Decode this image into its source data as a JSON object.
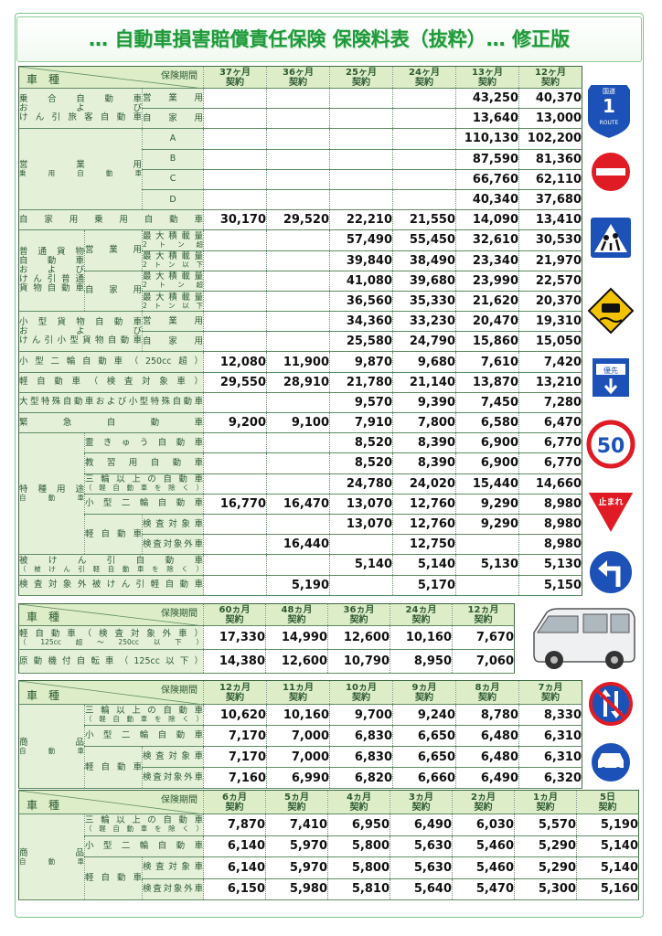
{
  "title": "… 自動車損害賠償責任保険 保険料表（抜粋）… 修正版",
  "signs": {
    "route_top": "国道",
    "route_number": "1",
    "route_bottom": "ROUTE",
    "priority": "優先",
    "speed": "50",
    "stop": "止まれ"
  },
  "table1": {
    "corner_top": "保険期間",
    "corner_bottom": "車　種",
    "columns": [
      [
        "37ヶ月",
        "契約"
      ],
      [
        "36ヶ月",
        "契約"
      ],
      [
        "25ヶ月",
        "契約"
      ],
      [
        "24ヶ月",
        "契約"
      ],
      [
        "13ヶ月",
        "契約"
      ],
      [
        "12ヶ月",
        "契約"
      ]
    ],
    "rows": [
      {
        "labels": [
          [
            "乗合自動車",
            "および",
            "けん引旅客自動車"
          ],
          [
            "営業用"
          ]
        ],
        "values": [
          null,
          null,
          null,
          null,
          "43,250",
          "40,370"
        ]
      },
      {
        "labels": [
          [
            "自家用"
          ]
        ],
        "values": [
          null,
          null,
          null,
          null,
          "13,640",
          "13,000"
        ]
      },
      {
        "labels": [
          [
            "営業用",
            "乗用自動車"
          ],
          [
            "A"
          ]
        ],
        "values": [
          null,
          null,
          null,
          null,
          "110,130",
          "102,200"
        ]
      },
      {
        "labels": [
          [
            "B"
          ]
        ],
        "values": [
          null,
          null,
          null,
          null,
          "87,590",
          "81,360"
        ]
      },
      {
        "labels": [
          [
            "C"
          ]
        ],
        "values": [
          null,
          null,
          null,
          null,
          "66,760",
          "62,110"
        ]
      },
      {
        "labels": [
          [
            "D"
          ]
        ],
        "values": [
          null,
          null,
          null,
          null,
          "40,340",
          "37,680"
        ]
      },
      {
        "labels": [
          [
            "自家用乗用自動車"
          ]
        ],
        "values": [
          "30,170",
          "29,520",
          "22,210",
          "21,550",
          "14,090",
          "13,410"
        ]
      },
      {
        "labels": [
          [
            "普通貨物",
            "自動車",
            "および",
            "けん引普通",
            "貨物自動車"
          ],
          [
            "営業用"
          ],
          [
            "最大積載量",
            "2トン超"
          ]
        ],
        "values": [
          null,
          null,
          "57,490",
          "55,450",
          "32,610",
          "30,530"
        ]
      },
      {
        "labels": [
          [
            "最大積載量",
            "2トン以下"
          ]
        ],
        "values": [
          null,
          null,
          "39,840",
          "38,490",
          "23,340",
          "21,970"
        ]
      },
      {
        "labels": [
          [
            "自家用"
          ],
          [
            "最大積載量",
            "2トン超"
          ]
        ],
        "values": [
          null,
          null,
          "41,080",
          "39,680",
          "23,990",
          "22,570"
        ]
      },
      {
        "labels": [
          [
            "最大積載量",
            "2トン以下"
          ]
        ],
        "values": [
          null,
          null,
          "36,560",
          "35,330",
          "21,620",
          "20,370"
        ]
      },
      {
        "labels": [
          [
            "小型貨物自動車",
            "および",
            "けん引小型貨物自動車"
          ],
          [
            "営業用"
          ]
        ],
        "values": [
          null,
          null,
          "34,360",
          "33,230",
          "20,470",
          "19,310"
        ]
      },
      {
        "labels": [
          [
            "自家用"
          ]
        ],
        "values": [
          null,
          null,
          "25,580",
          "24,790",
          "15,860",
          "15,050"
        ]
      },
      {
        "labels": [
          [
            "小型二輪自動車（250cc超）"
          ]
        ],
        "values": [
          "12,080",
          "11,900",
          "9,870",
          "9,680",
          "7,610",
          "7,420"
        ]
      },
      {
        "labels": [
          [
            "軽自動車（検査対象車）"
          ]
        ],
        "values": [
          "29,550",
          "28,910",
          "21,780",
          "21,140",
          "13,870",
          "13,210"
        ]
      },
      {
        "labels": [
          [
            "大型特殊自動車および小型特殊自動車"
          ]
        ],
        "values": [
          null,
          null,
          "9,570",
          "9,390",
          "7,450",
          "7,280"
        ]
      },
      {
        "labels": [
          [
            "緊急自動車"
          ]
        ],
        "values": [
          "9,200",
          "9,100",
          "7,910",
          "7,800",
          "6,580",
          "6,470"
        ]
      },
      {
        "labels": [
          [
            "特種用途",
            "自動車"
          ],
          [
            "霊きゅう自動車"
          ]
        ],
        "values": [
          null,
          null,
          "8,520",
          "8,390",
          "6,900",
          "6,770"
        ]
      },
      {
        "labels": [
          [
            "教習用自動車"
          ]
        ],
        "values": [
          null,
          null,
          "8,520",
          "8,390",
          "6,900",
          "6,770"
        ]
      },
      {
        "labels": [
          [
            "三輪以上の自動車",
            "（軽自動車を除く）"
          ]
        ],
        "values": [
          null,
          null,
          "24,780",
          "24,020",
          "15,440",
          "14,660"
        ]
      },
      {
        "labels": [
          [
            "小型二輪自動車"
          ]
        ],
        "values": [
          "16,770",
          "16,470",
          "13,070",
          "12,760",
          "9,290",
          "8,980"
        ]
      },
      {
        "labels": [
          [
            "軽自動車"
          ],
          [
            "検査対象車"
          ]
        ],
        "values": [
          null,
          null,
          "13,070",
          "12,760",
          "9,290",
          "8,980"
        ]
      },
      {
        "labels": [
          [
            "検査対象外車"
          ]
        ],
        "values": [
          null,
          "16,440",
          null,
          "12,750",
          null,
          "8,980"
        ]
      },
      {
        "labels": [
          [
            "被けん引自動車",
            "（被けん引軽自動車を除く）"
          ]
        ],
        "values": [
          null,
          null,
          "5,140",
          "5,140",
          "5,130",
          "5,130"
        ]
      },
      {
        "labels": [
          [
            "検査対象外被けん引軽自動車"
          ]
        ],
        "values": [
          null,
          "5,190",
          null,
          "5,170",
          null,
          "5,150"
        ]
      }
    ]
  },
  "table2": {
    "corner_top": "保険期間",
    "corner_bottom": "車　種",
    "columns": [
      [
        "60ヵ月",
        "契約"
      ],
      [
        "48ヵ月",
        "契約"
      ],
      [
        "36ヵ月",
        "契約"
      ],
      [
        "24ヵ月",
        "契約"
      ],
      [
        "12ヵ月",
        "契約"
      ]
    ],
    "rows": [
      {
        "labels": [
          [
            "軽自動車（検査対象外車）",
            "（125cc超～250cc以下）"
          ]
        ],
        "values": [
          "17,330",
          "14,990",
          "12,600",
          "10,160",
          "7,670"
        ]
      },
      {
        "labels": [
          [
            "原動機付自転車（125cc以下）"
          ]
        ],
        "values": [
          "14,380",
          "12,600",
          "10,790",
          "8,950",
          "7,060"
        ]
      }
    ]
  },
  "table3": {
    "corner_top": "保険期間",
    "corner_bottom": "車　種",
    "columns": [
      [
        "12ヵ月",
        "契約"
      ],
      [
        "11ヵ月",
        "契約"
      ],
      [
        "10ヵ月",
        "契約"
      ],
      [
        "9ヵ月",
        "契約"
      ],
      [
        "8ヵ月",
        "契約"
      ],
      [
        "7ヵ月",
        "契約"
      ]
    ],
    "rows": [
      {
        "labels": [
          [
            "商品",
            "自動車"
          ],
          [
            "三輪以上の自動車",
            "（軽自動車を除く）"
          ]
        ],
        "values": [
          "10,620",
          "10,160",
          "9,700",
          "9,240",
          "8,780",
          "8,330"
        ]
      },
      {
        "labels": [
          [
            "小型二輪自動車"
          ]
        ],
        "values": [
          "7,170",
          "7,000",
          "6,830",
          "6,650",
          "6,480",
          "6,310"
        ]
      },
      {
        "labels": [
          [
            "軽自動車"
          ],
          [
            "検査対象車"
          ]
        ],
        "values": [
          "7,170",
          "7,000",
          "6,830",
          "6,650",
          "6,480",
          "6,310"
        ]
      },
      {
        "labels": [
          [
            "検査対象外車"
          ]
        ],
        "values": [
          "7,160",
          "6,990",
          "6,820",
          "6,660",
          "6,490",
          "6,320"
        ]
      }
    ]
  },
  "table4": {
    "corner_top": "保険期間",
    "corner_bottom": "車　種",
    "columns": [
      [
        "6ヵ月",
        "契約"
      ],
      [
        "5ヵ月",
        "契約"
      ],
      [
        "4ヵ月",
        "契約"
      ],
      [
        "3ヵ月",
        "契約"
      ],
      [
        "2ヵ月",
        "契約"
      ],
      [
        "1ヵ月",
        "契約"
      ],
      [
        "5日",
        "契約"
      ]
    ],
    "rows": [
      {
        "labels": [
          [
            "商品",
            "自動車"
          ],
          [
            "三輪以上の自動車",
            "（軽自動車を除く）"
          ]
        ],
        "values": [
          "7,870",
          "7,410",
          "6,950",
          "6,490",
          "6,030",
          "5,570",
          "5,190"
        ]
      },
      {
        "labels": [
          [
            "小型二輪自動車"
          ]
        ],
        "values": [
          "6,140",
          "5,970",
          "5,800",
          "5,630",
          "5,460",
          "5,290",
          "5,140"
        ]
      },
      {
        "labels": [
          [
            "軽自動車"
          ],
          [
            "検査対象車"
          ]
        ],
        "values": [
          "6,140",
          "5,970",
          "5,800",
          "5,630",
          "5,460",
          "5,290",
          "5,140"
        ]
      },
      {
        "labels": [
          [
            "検査対象外車"
          ]
        ],
        "values": [
          "6,150",
          "5,980",
          "5,810",
          "5,640",
          "5,470",
          "5,300",
          "5,160"
        ]
      }
    ]
  }
}
